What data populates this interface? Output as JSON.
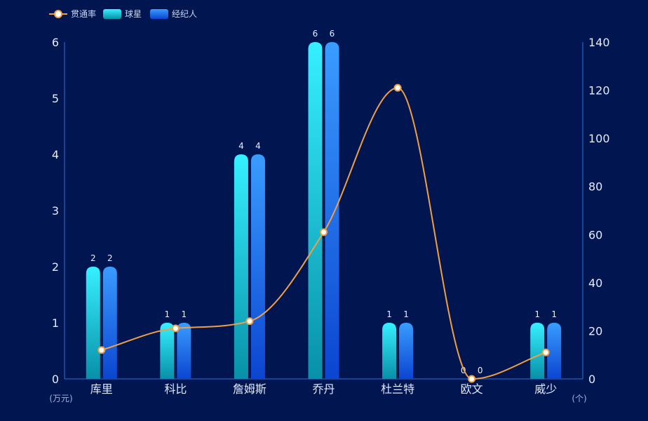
{
  "chart_data": {
    "type": "bar",
    "categories": [
      "库里",
      "科比",
      "詹姆斯",
      "乔丹",
      "杜兰特",
      "欧文",
      "威少"
    ],
    "series": [
      {
        "name": "球星",
        "type": "bar",
        "axis": "left",
        "values": [
          2,
          1,
          4,
          6,
          1,
          0,
          1
        ],
        "colors": [
          "#36f0ff",
          "#0890a8"
        ]
      },
      {
        "name": "经纪人",
        "type": "bar",
        "axis": "left",
        "values": [
          2,
          1,
          4,
          6,
          1,
          0,
          1
        ],
        "colors": [
          "#3a9cff",
          "#0b45d0"
        ]
      },
      {
        "name": "贯通率",
        "type": "line",
        "axis": "right",
        "values": [
          12,
          21,
          24,
          61,
          121,
          0,
          11
        ],
        "color": "#f0a042"
      }
    ],
    "y_left": {
      "unit": "(万元)",
      "ylim": [
        0,
        6
      ],
      "ticks": [
        "0",
        "1",
        "2",
        "3",
        "4",
        "5",
        "6"
      ]
    },
    "y_right": {
      "unit": "(个)",
      "ylim": [
        0,
        140
      ],
      "ticks": [
        "0",
        "20",
        "40",
        "60",
        "80",
        "100",
        "120",
        "140"
      ]
    },
    "legend": {
      "placement": "top-left",
      "order": [
        "贯通率",
        "球星",
        "经纪人"
      ]
    },
    "grid": false,
    "axis_color": "#2a72d8",
    "background": "#011650"
  }
}
